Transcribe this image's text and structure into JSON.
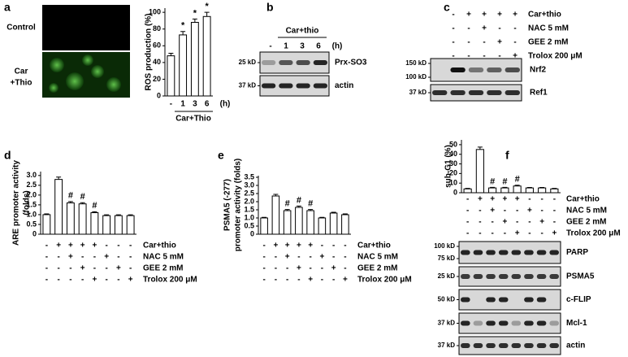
{
  "panel_a": {
    "label": "a",
    "image_labels": {
      "control": "Control",
      "treated": [
        "Car",
        "+Thio"
      ]
    },
    "chart": {
      "type": "bar",
      "ylabel": [
        "ROS production (%)"
      ],
      "categories": [
        "-",
        "1",
        "3",
        "6"
      ],
      "unit": "(h)",
      "group_label": "Car+Thio",
      "values": [
        48,
        73,
        88,
        95
      ],
      "errors": [
        3,
        4,
        4,
        5
      ],
      "markers": [
        null,
        "*",
        "*",
        "*"
      ],
      "ylim": [
        0,
        105
      ],
      "yticks": [
        0,
        20,
        40,
        60,
        80,
        100
      ]
    }
  },
  "panel_b": {
    "label": "b",
    "header": "Car+thio",
    "times": [
      "-",
      "1",
      "3",
      "6"
    ],
    "unit": "(h)",
    "blots": [
      {
        "name": "Prx-SO3",
        "markers": [
          "25 kD"
        ]
      },
      {
        "name": "actin",
        "markers": [
          "37 kD"
        ]
      }
    ]
  },
  "panel_c": {
    "label": "c",
    "conditions": {
      "names": [
        "Car+thio",
        "NAC 5 mM",
        "GEE 2 mM",
        "Trolox  200 μM"
      ],
      "signs": [
        [
          "-",
          "+",
          "+",
          "+",
          "+"
        ],
        [
          "-",
          "-",
          "+",
          "-",
          "-"
        ],
        [
          "-",
          "-",
          "-",
          "+",
          "-"
        ],
        [
          "-",
          "-",
          "-",
          "-",
          "+"
        ]
      ]
    },
    "blots": [
      {
        "name": "Nrf2",
        "markers": [
          "150 kD",
          "100 kD"
        ]
      },
      {
        "name": "Ref1",
        "markers": [
          "37 kD"
        ]
      }
    ]
  },
  "panel_d": {
    "label": "d",
    "chart": {
      "type": "bar",
      "ylabel": [
        "ARE promoter activity",
        "(folds)"
      ],
      "values": [
        1.0,
        2.8,
        1.6,
        1.55,
        1.1,
        0.95,
        0.95,
        0.95
      ],
      "errors": [
        0.04,
        0.12,
        0.07,
        0.06,
        0.05,
        0.04,
        0.04,
        0.04
      ],
      "markers": [
        null,
        null,
        "#",
        "#",
        "#",
        null,
        null,
        null
      ],
      "ylim": [
        0,
        3.2
      ],
      "yticks": [
        0,
        0.5,
        {
          "value": 1,
          "label": "1.0"
        },
        1.5,
        {
          "value": 2,
          "label": "2.0"
        },
        2.5,
        {
          "value": 3,
          "label": "3.0"
        }
      ]
    },
    "conditions": {
      "names": [
        "Car+thio",
        "NAC 5 mM",
        "GEE 2 mM",
        "Trolox 200 μM"
      ],
      "signs": [
        [
          "-",
          "+",
          "+",
          "+",
          "+",
          "-",
          "-",
          "-"
        ],
        [
          "-",
          "-",
          "+",
          "-",
          "-",
          "+",
          "-",
          "-"
        ],
        [
          "-",
          "-",
          "-",
          "+",
          "-",
          "-",
          "+",
          "-"
        ],
        [
          "-",
          "-",
          "-",
          "-",
          "+",
          "-",
          "-",
          "+"
        ]
      ]
    }
  },
  "panel_e": {
    "label": "e",
    "chart": {
      "type": "bar",
      "ylabel": [
        "PSMA5 (-277)",
        "promoter activity (folds)"
      ],
      "values": [
        1.0,
        2.35,
        1.45,
        1.65,
        1.45,
        1.0,
        1.3,
        1.2
      ],
      "errors": [
        0.04,
        0.1,
        0.07,
        0.08,
        0.07,
        0.04,
        0.05,
        0.05
      ],
      "markers": [
        null,
        null,
        "#",
        "#",
        "#",
        null,
        null,
        null
      ],
      "ylim": [
        0,
        3.6
      ],
      "yticks": [
        0,
        0.5,
        {
          "value": 1,
          "label": "1.0"
        },
        1.5,
        {
          "value": 2,
          "label": "2.0"
        },
        2.5,
        {
          "value": 3,
          "label": "3.0"
        },
        3.5
      ]
    },
    "conditions": {
      "names": [
        "Car+thio",
        "NAC 5 mM",
        "GEE 2 mM",
        "Trolox 200 μM"
      ],
      "signs": [
        [
          "-",
          "+",
          "+",
          "+",
          "+",
          "-",
          "-",
          "-"
        ],
        [
          "-",
          "-",
          "+",
          "-",
          "-",
          "+",
          "-",
          "-"
        ],
        [
          "-",
          "-",
          "-",
          "+",
          "-",
          "-",
          "+",
          "-"
        ],
        [
          "-",
          "-",
          "-",
          "-",
          "+",
          "-",
          "-",
          "+"
        ]
      ]
    }
  },
  "panel_f": {
    "label": "f",
    "chart": {
      "type": "bar",
      "ylabel": [
        "sub-G1 (%)"
      ],
      "values": [
        4,
        45,
        5,
        5,
        7,
        5,
        5,
        4
      ],
      "errors": [
        0.5,
        2.5,
        0.6,
        0.6,
        0.8,
        0.5,
        0.5,
        0.5
      ],
      "markers": [
        null,
        null,
        "#",
        "#",
        "#",
        null,
        null,
        null
      ],
      "ylim": [
        0,
        55
      ],
      "yticks": [
        0,
        10,
        20,
        30,
        40,
        50
      ]
    },
    "conditions": {
      "names": [
        "Car+thio",
        "NAC 5 mM",
        "GEE 2 mM",
        "Trolox 200 μM"
      ],
      "signs": [
        [
          "-",
          "+",
          "+",
          "+",
          "+",
          "-",
          "-",
          "-"
        ],
        [
          "-",
          "-",
          "+",
          "-",
          "-",
          "+",
          "-",
          "-"
        ],
        [
          "-",
          "-",
          "-",
          "+",
          "-",
          "-",
          "+",
          "-"
        ],
        [
          "-",
          "-",
          "-",
          "-",
          "+",
          "-",
          "-",
          "+"
        ]
      ]
    },
    "blots": [
      {
        "name": "PARP",
        "markers": [
          "100 kD",
          "75 kD"
        ]
      },
      {
        "name": "PSMA5",
        "markers": [
          "25 kD"
        ]
      },
      {
        "name": "c-FLIP",
        "markers": [
          "50 kD"
        ]
      },
      {
        "name": "Mcl-1",
        "markers": [
          "37 kD"
        ]
      },
      {
        "name": "actin",
        "markers": [
          "37 kD"
        ]
      }
    ]
  }
}
